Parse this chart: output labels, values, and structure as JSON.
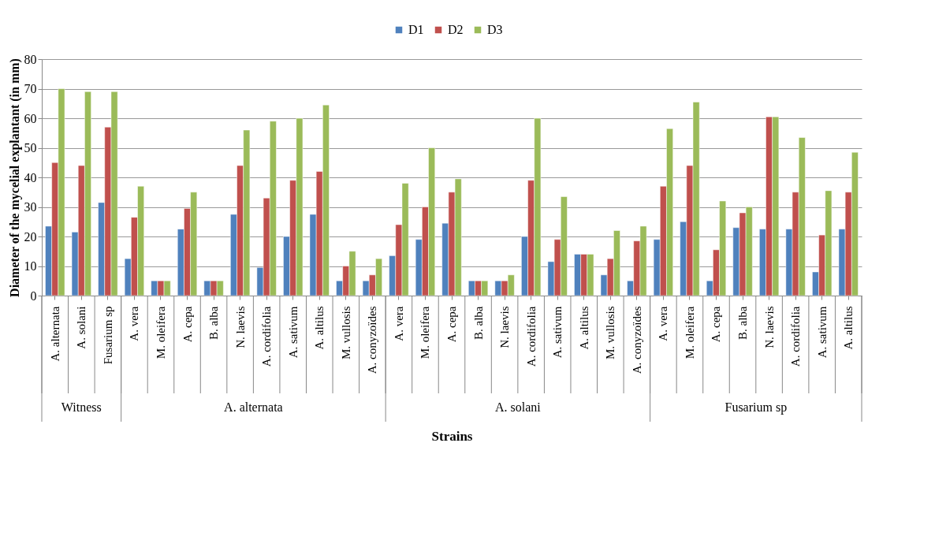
{
  "chart_data": {
    "type": "bar",
    "xlabel": "Strains",
    "ylabel": "Diameter of the mycelial explantant (in mm)",
    "categories": [
      "A. alternata",
      "A. solani",
      "Fusarium sp",
      "A. vera",
      "M. oleifera",
      "A. cepa",
      "B. alba",
      "N. laevis",
      "A. cordifolia",
      "A. sativum",
      "A. altilus",
      "M. vullosis",
      "A. conyzoïdes",
      "A. vera",
      "M. oleifera",
      "A. cepa",
      "B. alba",
      "N. laevis",
      "A. cordifolia",
      "A. sativum",
      "A. altilus",
      "M. vullosis",
      "A. conyzoïdes",
      "A. vera",
      "M. oleifera",
      "A. cepa",
      "B. alba",
      "N. laevis",
      "A. cordifolia",
      "A. sativum",
      "A. altilus"
    ],
    "series": [
      {
        "name": "D1",
        "color": "#4f81bd",
        "values": [
          23.5,
          21.5,
          31.5,
          12.5,
          5,
          22.5,
          5,
          27.5,
          9.5,
          20,
          27.5,
          5,
          5,
          13.5,
          19,
          24.5,
          5,
          5,
          20,
          11.5,
          14,
          7,
          5,
          19,
          25,
          5,
          23,
          22.5,
          22.5,
          8,
          22.5
        ]
      },
      {
        "name": "D2",
        "color": "#c0504d",
        "values": [
          45,
          44,
          57,
          26.5,
          5,
          29.5,
          5,
          44,
          33,
          39,
          42,
          10,
          7,
          24,
          30,
          35,
          5,
          5,
          39,
          19,
          14,
          12.5,
          18.5,
          37,
          44,
          15.5,
          28,
          60.5,
          35,
          20.5,
          35
        ]
      },
      {
        "name": "D3",
        "color": "#9bbb59",
        "values": [
          70,
          69,
          69,
          37,
          5,
          35,
          5,
          56,
          59,
          60,
          64.5,
          15,
          12.5,
          38,
          50,
          39.5,
          5,
          7,
          60,
          33.5,
          14,
          22,
          23.5,
          56.5,
          65.5,
          32,
          30,
          60.5,
          53.5,
          35.5,
          48.5
        ]
      }
    ],
    "annotations": [
      "Witness",
      "A. alternata",
      "A. solani",
      "Fusarium sp"
    ],
    "ylim": [
      0,
      80
    ],
    "yticks": [
      0,
      10,
      20,
      30,
      40,
      50,
      60,
      70,
      80
    ],
    "grid": "y",
    "legend": "top"
  }
}
